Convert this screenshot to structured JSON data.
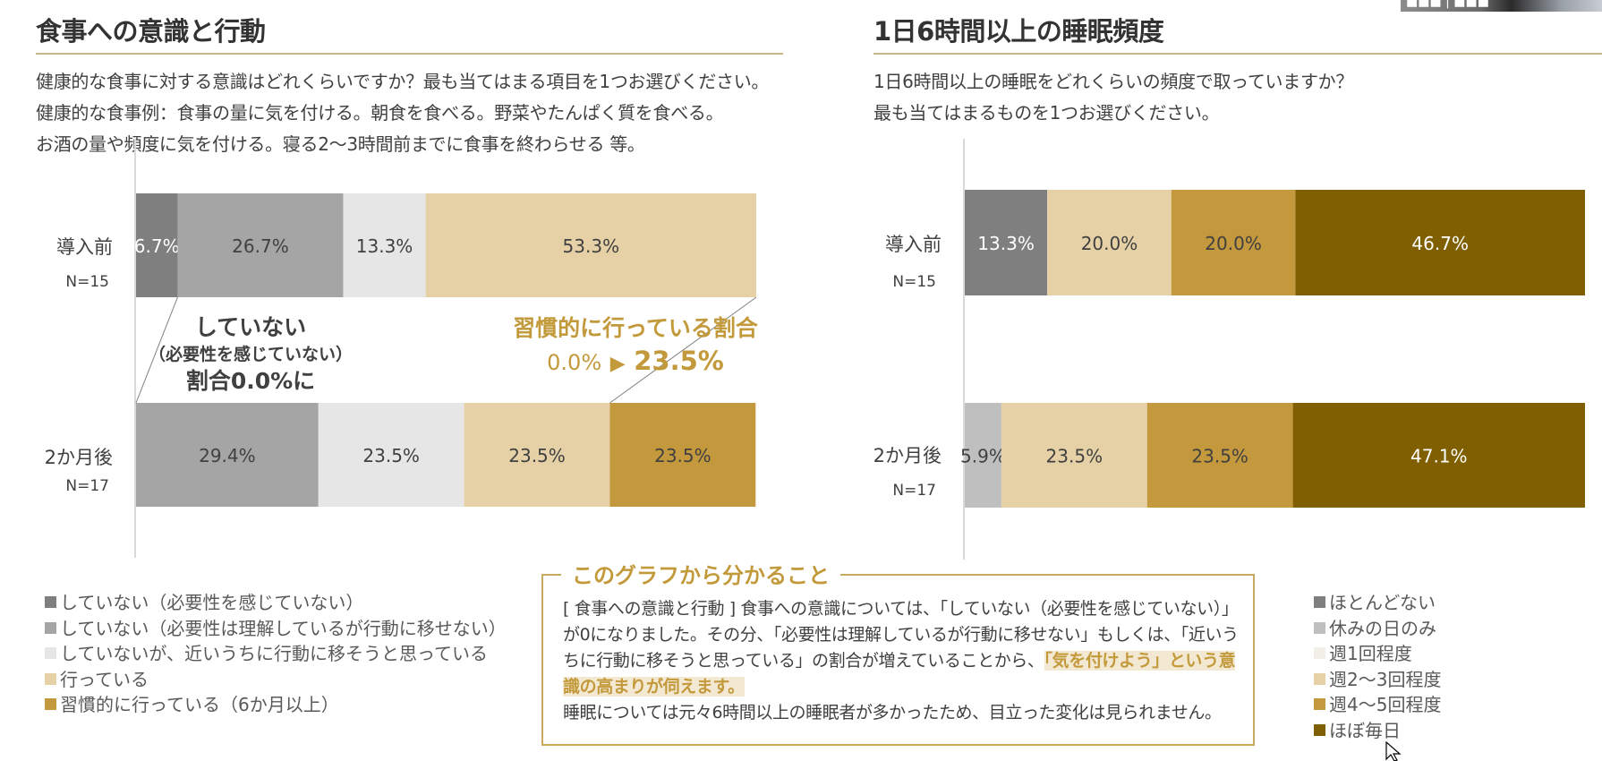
{
  "left_panel": {
    "title": "食事への意識と行動",
    "question_lines": [
      "健康的な食事に対する意識はどれくらいですか？最も当てはまる項目を1つお選びください。",
      "健康的な食事例：食事の量に気を付ける。朝食を食べる。野菜やたんぱく質を食べる。",
      "お酒の量や頻度に気を付ける。寝る2～3時間前までに食事を終わらせる 等。"
    ],
    "callout_left": {
      "line1": "していない",
      "line2": "（必要性を感じていない）",
      "line3": "割合0.0%に"
    },
    "callout_right": {
      "line1": "習慣的に行っている割合",
      "from": "0.0%",
      "arrow": "▶",
      "to": "23.5%"
    }
  },
  "right_panel": {
    "title": "1日6時間以上の睡眠頻度",
    "question_lines": [
      "1日6時間以上の睡眠をどれくらいの頻度で取っていますか？",
      "最も当てはまるものを1つお選びください。"
    ]
  },
  "summary_box": {
    "title": "このグラフから分かること",
    "paragraph1_plain": "[ 食事への意識と行動 ] 食事への意識については、「していない（必要性を感じていない）」が0になりました。その分、「必要性は理解しているが行動に移せない」もしくは、「近いうちに行動に移そうと思っている」の割合が増えていることから、",
    "paragraph1_highlight": "「気を付けよう」という意識の高まりが伺えます。",
    "paragraph2": "睡眠については元々6時間以上の睡眠者が多かったため、目立った変化は見られません。"
  },
  "video_overlay": {
    "name_tag": "■■■ | ■■■"
  },
  "chart_data": [
    {
      "type": "bar",
      "orientation": "horizontal-stacked-100",
      "title": "食事への意識と行動",
      "categories": [
        "導入前",
        "2か月後"
      ],
      "sample_sizes": [
        "N=15",
        "N=17"
      ],
      "xlim": [
        0,
        100
      ],
      "grid": false,
      "legend_position": "bottom-left",
      "series": [
        {
          "name": "していない（必要性を感じていない）",
          "color": "#7f7f7f",
          "values": [
            6.7,
            0.0
          ],
          "labels": [
            "6.7%",
            ""
          ],
          "label_color": "#ffffff"
        },
        {
          "name": "していない（必要性は理解しているが行動に移せない）",
          "color": "#a5a5a5",
          "values": [
            26.7,
            29.4
          ],
          "labels": [
            "26.7%",
            "29.4%"
          ],
          "label_color": "#404040"
        },
        {
          "name": "していないが、近いうちに行動に移そうと思っている",
          "color": "#e7e6e6",
          "values": [
            13.3,
            23.5
          ],
          "labels": [
            "13.3%",
            "23.5%"
          ],
          "label_color": "#404040"
        },
        {
          "name": "行っている",
          "color": "#e6d1a7",
          "values": [
            53.3,
            23.5
          ],
          "labels": [
            "53.3%",
            "23.5%"
          ],
          "label_color": "#404040"
        },
        {
          "name": "習慣的に行っている（6か月以上）",
          "color": "#c4983c",
          "values": [
            0.0,
            23.5
          ],
          "labels": [
            "",
            "23.5%"
          ],
          "label_color": "#404040"
        }
      ]
    },
    {
      "type": "bar",
      "orientation": "horizontal-stacked-100",
      "title": "1日6時間以上の睡眠頻度",
      "categories": [
        "導入前",
        "2か月後"
      ],
      "sample_sizes": [
        "N=15",
        "N=17"
      ],
      "xlim": [
        0,
        100
      ],
      "grid": false,
      "legend_position": "bottom-right",
      "series": [
        {
          "name": "ほとんどない",
          "color": "#7f7f7f",
          "values": [
            13.3,
            0.0
          ],
          "labels": [
            "13.3%",
            ""
          ],
          "label_color": "#ffffff"
        },
        {
          "name": "休みの日のみ",
          "color": "#bfbfbf",
          "values": [
            0.0,
            5.9
          ],
          "labels": [
            "",
            "5.9%"
          ],
          "label_color": "#404040"
        },
        {
          "name": "週1回程度",
          "color": "#f2efe8",
          "values": [
            0.0,
            0.0
          ],
          "labels": [
            "",
            ""
          ],
          "label_color": "#404040"
        },
        {
          "name": "週2～3回程度",
          "color": "#e6d1a7",
          "values": [
            20.0,
            23.5
          ],
          "labels": [
            "20.0%",
            "23.5%"
          ],
          "label_color": "#404040"
        },
        {
          "name": "週4～5回程度",
          "color": "#c4983c",
          "values": [
            20.0,
            23.5
          ],
          "labels": [
            "20.0%",
            "23.5%"
          ],
          "label_color": "#404040"
        },
        {
          "name": "ほぼ毎日",
          "color": "#7f5f00",
          "values": [
            46.7,
            47.1
          ],
          "labels": [
            "46.7%",
            "47.1%"
          ],
          "label_color": "#ffffff"
        }
      ]
    }
  ]
}
